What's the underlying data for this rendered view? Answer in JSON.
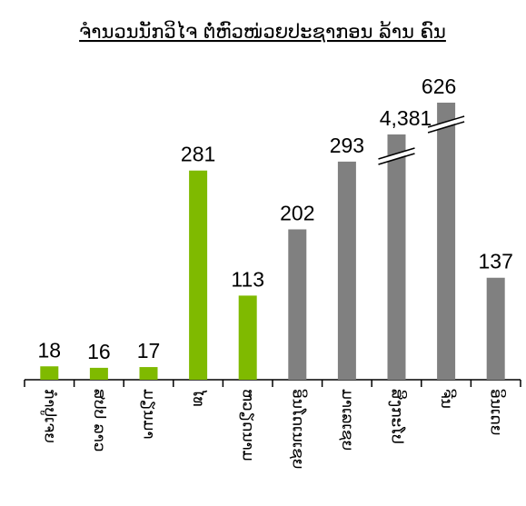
{
  "chart_data": {
    "type": "bar",
    "title": "ຈຳນວນນັກວິໄຈ ຕໍ່ຫົວໜ່ວຍປະຊາກອນ ລ້ານ ຄົນ",
    "categories": [
      "ກຳປູເຈຍ",
      "ສປປ ລາວ",
      "ມຽນມາ",
      "ໄທ",
      "ຫວຽດນາມ",
      "ອິນໂດເນເຊຍ",
      "ມາເລເຊຍ",
      "ສິງກະໂປ",
      "ຈີນ",
      "ອິນເດຍ"
    ],
    "values": [
      18,
      16,
      17,
      281,
      113,
      202,
      293,
      4381,
      626,
      137
    ],
    "value_labels": [
      "18",
      "16",
      "17",
      "281",
      "113",
      "202",
      "293",
      "4,381",
      "626",
      "137"
    ],
    "colors": [
      "#7fba00",
      "#7fba00",
      "#7fba00",
      "#7fba00",
      "#7fba00",
      "#808080",
      "#808080",
      "#808080",
      "#808080",
      "#808080"
    ],
    "ylim": [
      0,
      360
    ],
    "axis_break": true
  }
}
